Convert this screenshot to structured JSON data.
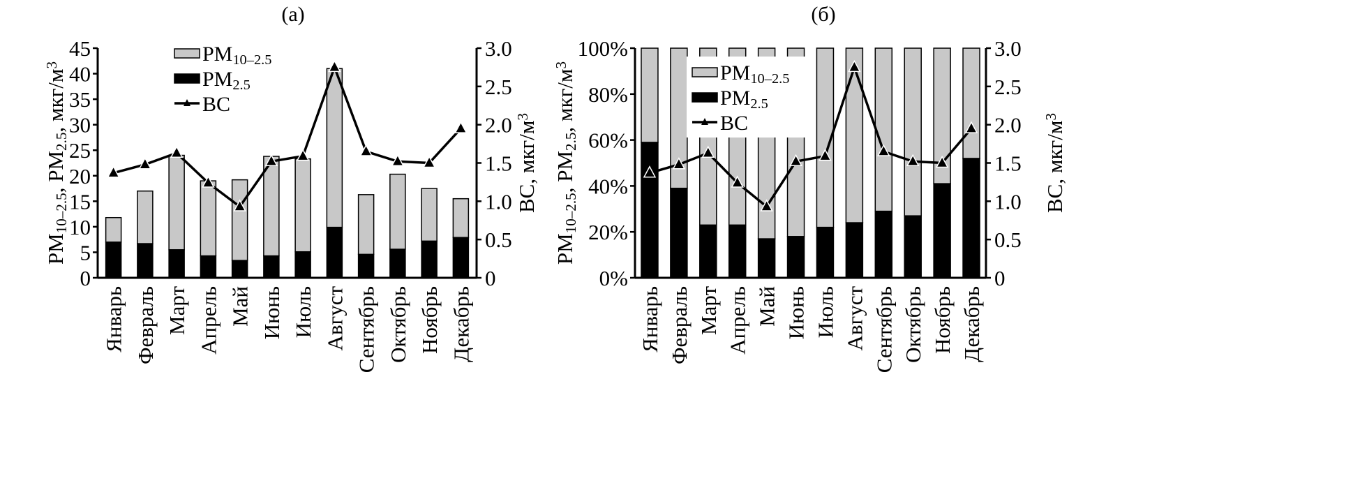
{
  "chart_data": [
    {
      "type": "bar",
      "stacked": true,
      "title": "(а)",
      "categories": [
        "Январь",
        "Февраль",
        "Март",
        "Апрель",
        "Май",
        "Июнь",
        "Июль",
        "Август",
        "Сентябрь",
        "Октябрь",
        "Ноябрь",
        "Декабрь"
      ],
      "series": [
        {
          "name": "PM2.5",
          "name_parts": [
            [
              "PM",
              ""
            ],
            [
              "2.5",
              "sub"
            ]
          ],
          "color": "#000000",
          "axis": "left",
          "values": [
            7.0,
            6.7,
            5.5,
            4.3,
            3.4,
            4.3,
            5.1,
            9.9,
            4.6,
            5.6,
            7.2,
            7.9
          ]
        },
        {
          "name": "PM10–2.5",
          "name_parts": [
            [
              "PM",
              ""
            ],
            [
              "10–2.5",
              "sub"
            ]
          ],
          "color": "#c8c8c8",
          "axis": "left",
          "values": [
            4.8,
            10.3,
            18.5,
            14.7,
            15.8,
            19.5,
            18.2,
            31.1,
            11.7,
            14.7,
            10.3,
            7.6
          ]
        },
        {
          "name": "BC",
          "name_parts": [
            [
              "BC",
              ""
            ]
          ],
          "type": "line",
          "marker": "triangle",
          "color": "#000000",
          "axis": "right",
          "values": [
            1.37,
            1.48,
            1.63,
            1.24,
            0.93,
            1.52,
            1.59,
            2.75,
            1.65,
            1.52,
            1.5,
            1.95
          ]
        }
      ],
      "ylabel_parts": [
        [
          "PM",
          ""
        ],
        [
          "10–2.5",
          "sub"
        ],
        [
          ", PM",
          ""
        ],
        [
          "2.5",
          "sub"
        ],
        [
          ", мкг/м",
          ""
        ],
        [
          "3",
          "sup"
        ]
      ],
      "y2label_parts": [
        [
          "BC, мкг/м",
          ""
        ],
        [
          "3",
          "sup"
        ]
      ],
      "ylim": [
        0,
        45
      ],
      "yticks": [
        "0",
        "5",
        "10",
        "15",
        "20",
        "25",
        "30",
        "35",
        "40",
        "45"
      ],
      "y2lim": [
        0,
        3.0
      ],
      "y2ticks": [
        "0",
        "0.5",
        "1.0",
        "1.5",
        "2.0",
        "2.5",
        "3.0"
      ],
      "grid": false,
      "legend": "top-left"
    },
    {
      "type": "bar",
      "stacked": true,
      "title": "(б)",
      "categories": [
        "Январь",
        "Февраль",
        "Март",
        "Апрель",
        "Май",
        "Июнь",
        "Июль",
        "Август",
        "Сентябрь",
        "Октябрь",
        "Ноябрь",
        "Декабрь"
      ],
      "series": [
        {
          "name": "PM2.5",
          "name_parts": [
            [
              "PM",
              ""
            ],
            [
              "2.5",
              "sub"
            ]
          ],
          "color": "#000000",
          "axis": "left",
          "values": [
            59,
            39,
            23,
            23,
            17,
            18,
            22,
            24,
            29,
            27,
            41,
            52
          ]
        },
        {
          "name": "PM10–2.5",
          "name_parts": [
            [
              "PM",
              ""
            ],
            [
              "10–2.5",
              "sub"
            ]
          ],
          "color": "#c8c8c8",
          "axis": "left",
          "values": [
            41,
            61,
            77,
            77,
            83,
            82,
            78,
            76,
            71,
            73,
            59,
            48
          ]
        },
        {
          "name": "BC",
          "name_parts": [
            [
              "BC",
              ""
            ]
          ],
          "type": "line",
          "marker": "triangle",
          "color": "#000000",
          "axis": "right",
          "values": [
            1.37,
            1.48,
            1.63,
            1.24,
            0.93,
            1.52,
            1.59,
            2.75,
            1.65,
            1.52,
            1.5,
            1.95
          ]
        }
      ],
      "ylabel_parts": [
        [
          "PM",
          ""
        ],
        [
          "10–2.5",
          "sub"
        ],
        [
          ", PM",
          ""
        ],
        [
          "2.5",
          "sub"
        ],
        [
          ", мкг/м",
          ""
        ],
        [
          "3",
          "sup"
        ]
      ],
      "y2label_parts": [
        [
          "BC, мкг/м",
          ""
        ],
        [
          "3",
          "sup"
        ]
      ],
      "ylim": [
        0,
        100
      ],
      "yticks": [
        "0%",
        "20%",
        "40%",
        "60%",
        "80%",
        "100%"
      ],
      "y2lim": [
        0,
        3.0
      ],
      "y2ticks": [
        "0",
        "0.5",
        "1.0",
        "1.5",
        "2.0",
        "2.5",
        "3.0"
      ],
      "grid": false,
      "legend": "top-center"
    }
  ]
}
